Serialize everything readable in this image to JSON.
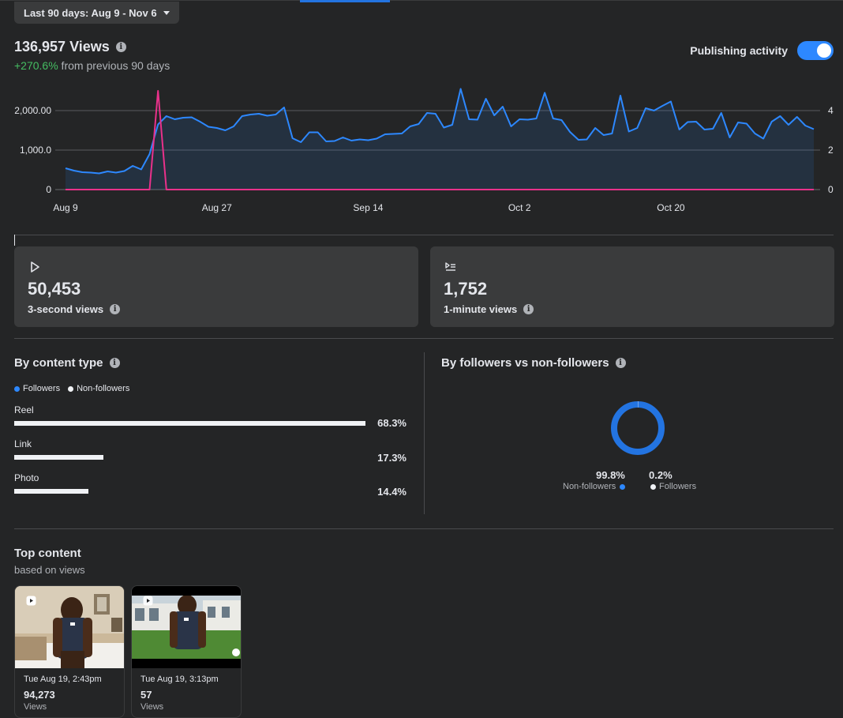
{
  "date_range": {
    "label": "Last 90 days: Aug 9 - Nov 6"
  },
  "views": {
    "title": "136,957 Views",
    "change": "+270.6%",
    "change_suffix": " from previous 90 days"
  },
  "publishing_activity": {
    "label": "Publishing activity",
    "enabled": true
  },
  "chart_data": {
    "type": "line",
    "x_tick_labels": [
      "Aug 9",
      "Aug 27",
      "Sep 14",
      "Oct 2",
      "Oct 20"
    ],
    "y_left_ticks": [
      "2,000.00",
      "1,000.0",
      "0"
    ],
    "y_left_lim": [
      0,
      2600
    ],
    "y_right_ticks": [
      "4",
      "2",
      "0"
    ],
    "y_right_lim": [
      0,
      5.2
    ],
    "series": [
      {
        "axis": "left",
        "color": "#2d88ff",
        "values": [
          540,
          480,
          440,
          430,
          410,
          460,
          430,
          470,
          600,
          510,
          900,
          1650,
          1860,
          1780,
          1820,
          1830,
          1720,
          1590,
          1560,
          1500,
          1600,
          1860,
          1900,
          1920,
          1870,
          1900,
          2080,
          1300,
          1200,
          1450,
          1450,
          1220,
          1230,
          1320,
          1240,
          1270,
          1250,
          1290,
          1400,
          1410,
          1420,
          1600,
          1660,
          1940,
          1920,
          1570,
          1640,
          2550,
          1780,
          1770,
          2300,
          1880,
          2100,
          1600,
          1780,
          1770,
          1800,
          2450,
          1800,
          1760,
          1460,
          1260,
          1270,
          1560,
          1380,
          1420,
          2380,
          1470,
          1560,
          2060,
          2000,
          2120,
          2230,
          1520,
          1710,
          1720,
          1520,
          1540,
          1940,
          1320,
          1700,
          1670,
          1420,
          1290,
          1720,
          1860,
          1640,
          1840,
          1620,
          1530
        ]
      },
      {
        "axis": "right",
        "color": "#e9318a",
        "values": [
          0,
          0,
          0,
          0,
          0,
          0,
          0,
          0,
          0,
          0,
          0,
          5,
          0,
          0,
          0,
          0,
          0,
          0,
          0,
          0,
          0,
          0,
          0,
          0,
          0,
          0,
          0,
          0,
          0,
          0,
          0,
          0,
          0,
          0,
          0,
          0,
          0,
          0,
          0,
          0,
          0,
          0,
          0,
          0,
          0,
          0,
          0,
          0,
          0,
          0,
          0,
          0,
          0,
          0,
          0,
          0,
          0,
          0,
          0,
          0,
          0,
          0,
          0,
          0,
          0,
          0,
          0,
          0,
          0,
          0,
          0,
          0,
          0,
          0,
          0,
          0,
          0,
          0,
          0,
          0,
          0,
          0,
          0,
          0,
          0,
          0,
          0,
          0,
          0,
          0
        ]
      }
    ]
  },
  "cards": [
    {
      "icon": "play-icon",
      "value": "50,453",
      "label": "3-second views"
    },
    {
      "icon": "minute-views-icon",
      "value": "1,752",
      "label": "1-minute views"
    }
  ],
  "content_type": {
    "title": "By content type",
    "legend": {
      "followers": "Followers",
      "non_followers": "Non-followers"
    },
    "rows": [
      {
        "label": "Reel",
        "pct": "68.3%",
        "value": 68.3
      },
      {
        "label": "Link",
        "pct": "17.3%",
        "value": 17.3
      },
      {
        "label": "Photo",
        "pct": "14.4%",
        "value": 14.4
      }
    ]
  },
  "followers_split": {
    "title": "By followers vs non-followers",
    "non_followers_pct": "99.8%",
    "non_followers_label": "Non-followers",
    "followers_pct": "0.2%",
    "followers_label": "Followers"
  },
  "top_content": {
    "title": "Top content",
    "subtitle": "based on views",
    "items": [
      {
        "date": "Tue Aug 19, 2:43pm",
        "count": "94,273",
        "count_label": "Views"
      },
      {
        "date": "Tue Aug 19, 3:13pm",
        "count": "57",
        "count_label": "Views"
      }
    ]
  },
  "colors": {
    "accent": "#2d88ff",
    "positive": "#45bd62",
    "pink": "#e9318a",
    "background": "#242526",
    "card": "#3a3b3c"
  }
}
